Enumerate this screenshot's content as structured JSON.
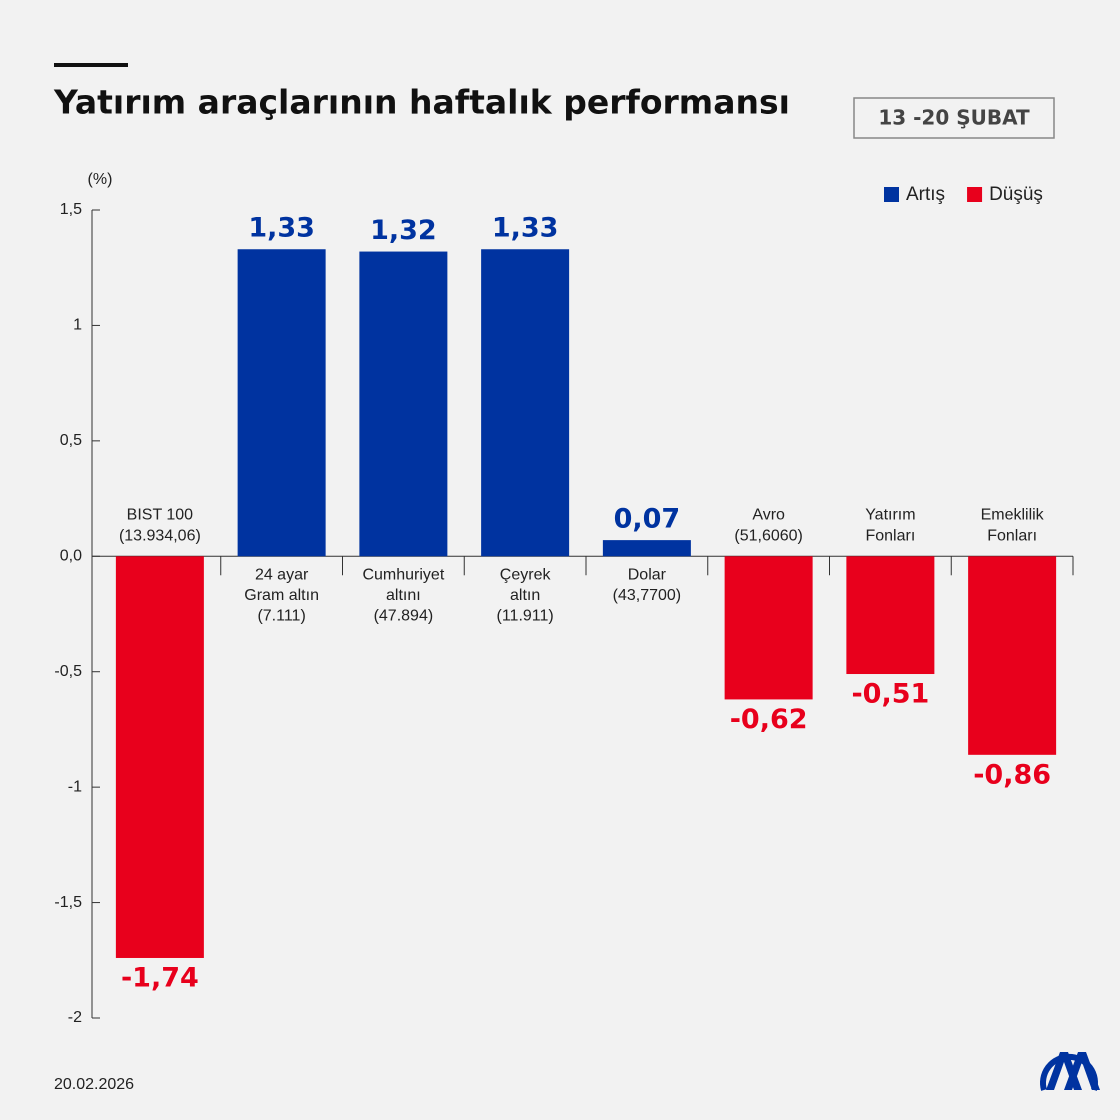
{
  "chart_data": {
    "type": "bar",
    "title": "Yatırım araçlarının haftalık performansı",
    "period": "13 -20 ŞUBAT",
    "y_label": "(%)",
    "date": "20.02.2026",
    "categories": [
      [
        "BIST 100",
        "(13.934,06)"
      ],
      [
        "24 ayar",
        "Gram altın",
        "(7.111)"
      ],
      [
        "Cumhuriyet",
        "altını",
        "(47.894)"
      ],
      [
        "Çeyrek",
        "altın",
        "(11.911)"
      ],
      [
        "Dolar",
        "(43,7700)"
      ],
      [
        "Avro",
        "(51,6060)"
      ],
      [
        "Yatırım",
        "Fonları"
      ],
      [
        "Emeklilik",
        "Fonları"
      ]
    ],
    "values": [
      -1.74,
      1.33,
      1.32,
      1.33,
      0.07,
      -0.62,
      -0.51,
      -0.86
    ],
    "value_labels": [
      "-1,74",
      "1,33",
      "1,32",
      "1,33",
      "0,07",
      "-0,62",
      "-0,51",
      "-0,86"
    ],
    "legend": [
      {
        "name": "Artış",
        "color": "#0033a0"
      },
      {
        "name": "Düşüş",
        "color": "#e8001c"
      }
    ],
    "ylim": [
      -2,
      1.5
    ],
    "yticks": [
      {
        "value": 1.5,
        "label": "1,5"
      },
      1,
      {
        "value": 0.5,
        "label": "0,5"
      },
      {
        "value": 0,
        "label": "0,0"
      },
      {
        "value": -0.5,
        "label": "-0,5"
      },
      -1,
      {
        "value": -1.5,
        "label": "-1,5"
      },
      -2
    ]
  }
}
